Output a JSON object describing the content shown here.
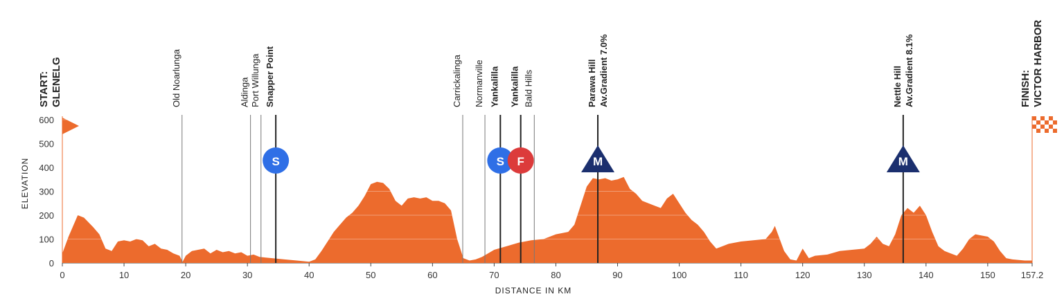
{
  "chart_data": {
    "type": "area",
    "color": "#ec6b2d",
    "y_label": "ELEVATION",
    "x_label": "DISTANCE IN KM",
    "xlim": [
      0,
      157.2
    ],
    "xticks": [
      0,
      10,
      20,
      30,
      40,
      50,
      60,
      70,
      80,
      90,
      100,
      110,
      120,
      130,
      140,
      150,
      157.2
    ],
    "ylim": [
      0,
      600
    ],
    "yticks": [
      0,
      100,
      200,
      300,
      400,
      500,
      600
    ],
    "x": [
      0,
      1,
      2,
      2.5,
      3.5,
      5,
      6,
      7,
      8,
      9,
      10,
      11,
      12,
      13,
      14,
      15,
      16,
      17,
      18,
      19,
      19.5,
      20,
      21,
      22,
      23,
      24,
      25,
      26,
      27,
      28,
      29,
      30,
      31,
      32,
      34,
      36,
      38,
      40,
      41,
      42,
      43,
      44,
      45,
      46,
      47,
      48,
      49,
      50,
      51,
      52,
      53,
      54,
      55,
      56,
      57,
      58,
      59,
      60,
      61,
      62,
      63,
      64,
      65,
      66,
      67,
      68,
      69,
      70,
      72,
      74,
      76,
      78,
      80,
      82,
      83,
      84,
      85,
      86,
      87,
      88,
      89,
      90,
      91,
      92,
      93,
      94,
      95,
      96,
      97,
      98,
      99,
      100,
      101,
      102,
      103,
      104,
      105,
      106,
      107,
      108,
      110,
      112,
      114,
      115,
      115.5,
      116,
      117,
      118,
      119,
      120,
      121,
      122,
      124,
      126,
      128,
      130,
      131,
      132,
      133,
      134,
      135,
      136,
      137,
      138,
      139,
      140,
      141,
      142,
      143,
      144,
      145,
      146,
      147,
      148,
      149,
      150,
      151,
      152,
      153,
      154,
      156,
      157.2
    ],
    "values": [
      40,
      110,
      170,
      200,
      190,
      150,
      120,
      60,
      50,
      90,
      95,
      90,
      100,
      95,
      70,
      80,
      60,
      55,
      40,
      30,
      5,
      30,
      50,
      55,
      60,
      40,
      55,
      45,
      50,
      40,
      45,
      30,
      35,
      25,
      20,
      15,
      10,
      5,
      15,
      50,
      90,
      130,
      160,
      190,
      210,
      240,
      280,
      330,
      340,
      335,
      310,
      260,
      240,
      270,
      275,
      270,
      275,
      260,
      260,
      250,
      220,
      100,
      20,
      10,
      15,
      25,
      40,
      55,
      70,
      85,
      95,
      100,
      120,
      130,
      160,
      240,
      320,
      355,
      350,
      355,
      345,
      350,
      360,
      310,
      290,
      260,
      250,
      240,
      230,
      270,
      290,
      250,
      210,
      180,
      160,
      130,
      90,
      60,
      70,
      80,
      90,
      95,
      100,
      130,
      155,
      120,
      50,
      15,
      10,
      60,
      20,
      30,
      35,
      50,
      55,
      60,
      80,
      110,
      80,
      70,
      120,
      200,
      230,
      210,
      240,
      200,
      130,
      70,
      50,
      40,
      30,
      60,
      100,
      120,
      115,
      110,
      90,
      50,
      20,
      15,
      10,
      10
    ],
    "places": [
      {
        "km": 0,
        "label": [
          "START:",
          "GLENELG"
        ],
        "bold": true
      },
      {
        "km": 19.4,
        "label": [
          "Old Noarlunga"
        ],
        "bold": false
      },
      {
        "km": 30.5,
        "label": [
          "Aldinga"
        ],
        "bold": false
      },
      {
        "km": 32.2,
        "label": [
          "Port Willunga"
        ],
        "bold": false
      },
      {
        "km": 34.6,
        "label": [
          "Snapper Point"
        ],
        "bold": true,
        "icon": "S",
        "icon_color": "#2f6fe6"
      },
      {
        "km": 64.9,
        "label": [
          "Carrickalinga"
        ],
        "bold": false
      },
      {
        "km": 68.5,
        "label": [
          "Normanville"
        ],
        "bold": false
      },
      {
        "km": 71.0,
        "label": [
          "Yankalilla"
        ],
        "bold": true,
        "icon": "S",
        "icon_color": "#2f6fe6"
      },
      {
        "km": 74.3,
        "label": [
          "Yankalilla"
        ],
        "bold": true,
        "icon": "F",
        "icon_color": "#dc3b3b"
      },
      {
        "km": 76.5,
        "label": [
          "Bald Hills"
        ],
        "bold": false
      },
      {
        "km": 86.8,
        "label": [
          "Parawa Hill",
          "Av.Gradient 7.0%"
        ],
        "bold": true,
        "icon": "M",
        "icon_color": "#1b2f6e"
      },
      {
        "km": 136.3,
        "label": [
          "Nettle Hill",
          "Av.Gradient 8.1%"
        ],
        "bold": true,
        "icon": "M",
        "icon_color": "#1b2f6e"
      },
      {
        "km": 157.2,
        "label": [
          "FINISH:",
          "VICTOR HARBOR"
        ],
        "bold": true
      }
    ]
  }
}
